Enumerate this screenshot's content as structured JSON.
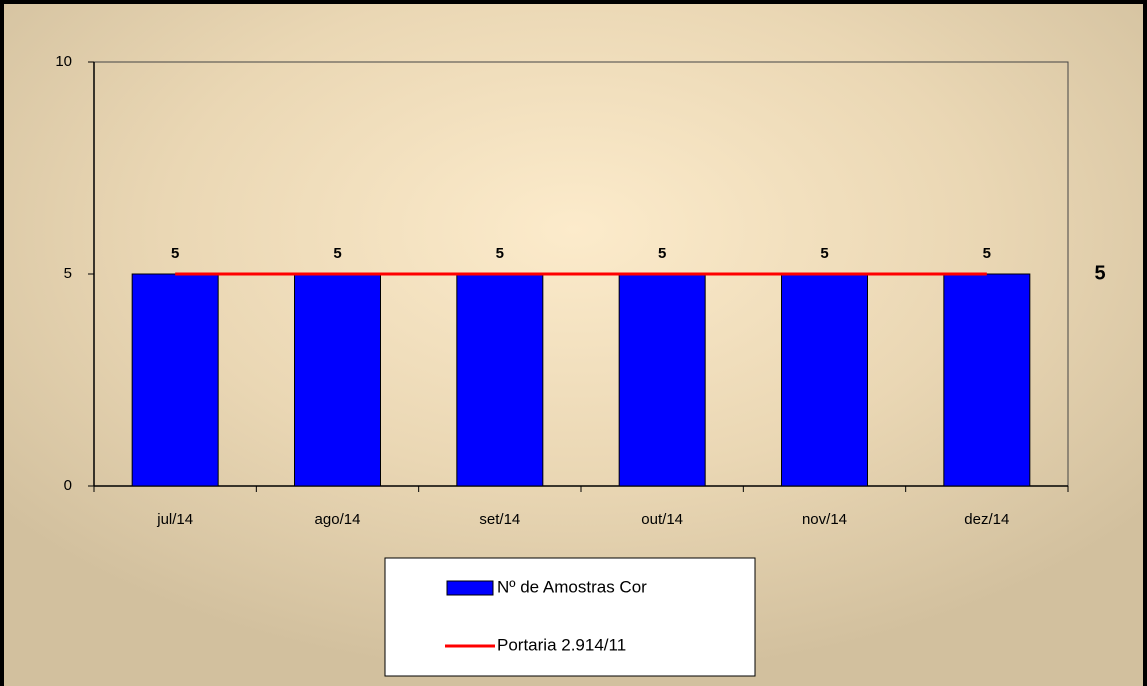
{
  "chart_data": {
    "type": "bar",
    "categories": [
      "jul/14",
      "ago/14",
      "set/14",
      "out/14",
      "nov/14",
      "dez/14"
    ],
    "series": [
      {
        "name": "Nº de Amostras Cor",
        "type": "bar",
        "color": "#0000ff",
        "values": [
          5,
          5,
          5,
          5,
          5,
          5
        ]
      },
      {
        "name": "Portaria 2.914/11",
        "type": "line",
        "color": "#ff0000",
        "values": [
          5,
          5,
          5,
          5,
          5,
          5
        ]
      }
    ],
    "ylim": [
      0,
      10
    ],
    "yticks": [
      0,
      5,
      10
    ],
    "grid": false,
    "legend": "bottom"
  }
}
